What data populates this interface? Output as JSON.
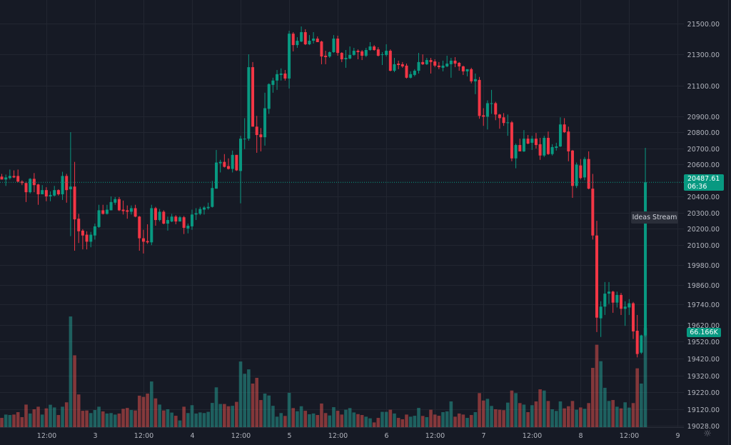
{
  "chart_data": {
    "type": "candlestick",
    "title": "",
    "scale": "log",
    "grid": true,
    "colors": {
      "up": "#089981",
      "down": "#f23645",
      "volume_up": "#26a69a",
      "volume_down": "#ef5350",
      "background": "#161a25",
      "grid": "#222631"
    },
    "y_ticks": [
      "21500.00",
      "21300.00",
      "21100.00",
      "20900.00",
      "20800.00",
      "20700.00",
      "20600.00",
      "20400.00",
      "20300.00",
      "20200.00",
      "20100.00",
      "19980.00",
      "19860.00",
      "19740.00",
      "19620.00",
      "19520.00",
      "19420.00",
      "19320.00",
      "19220.00",
      "19120.00",
      "19028.00"
    ],
    "ylim": [
      19028,
      21500
    ],
    "x_ticks": [
      {
        "label": "12:00",
        "bar": 11
      },
      {
        "label": "3",
        "bar": 23
      },
      {
        "label": "12:00",
        "bar": 35
      },
      {
        "label": "4",
        "bar": 47
      },
      {
        "label": "12:00",
        "bar": 59
      },
      {
        "label": "5",
        "bar": 71
      },
      {
        "label": "12:00",
        "bar": 83
      },
      {
        "label": "6",
        "bar": 95
      },
      {
        "label": "12:00",
        "bar": 107
      },
      {
        "label": "7",
        "bar": 119
      },
      {
        "label": "12:00",
        "bar": 131
      },
      {
        "label": "8",
        "bar": 143
      },
      {
        "label": "12:00",
        "bar": 155
      },
      {
        "label": "9",
        "bar": 167
      }
    ],
    "last_price": "20487.61",
    "countdown": "06:36",
    "last_volume": "66.166K",
    "candles_ohlc": [
      [
        20523,
        20540,
        20505,
        20505
      ],
      [
        20505,
        20536,
        20465,
        20518
      ],
      [
        20514,
        20567,
        20505,
        20527
      ],
      [
        20527,
        20562,
        20514,
        20518
      ],
      [
        20527,
        20567,
        20487,
        20492
      ],
      [
        20492,
        20500,
        20470,
        20483
      ],
      [
        20483,
        20492,
        20365,
        20426
      ],
      [
        20426,
        20514,
        20418,
        20509
      ],
      [
        20509,
        20545,
        20426,
        20470
      ],
      [
        20474,
        20478,
        20348,
        20413
      ],
      [
        20413,
        20470,
        20413,
        20439
      ],
      [
        20439,
        20457,
        20370,
        20400
      ],
      [
        20400,
        20431,
        20370,
        20409
      ],
      [
        20405,
        20465,
        20400,
        20439
      ],
      [
        20439,
        20444,
        20405,
        20413
      ],
      [
        20413,
        20553,
        20378,
        20527
      ],
      [
        20527,
        20540,
        20361,
        20439
      ],
      [
        20444,
        20802,
        20155,
        20461
      ],
      [
        20461,
        20615,
        20066,
        20258
      ],
      [
        20262,
        20292,
        20113,
        20185
      ],
      [
        20189,
        20198,
        20074,
        20159
      ],
      [
        20164,
        20185,
        20074,
        20121
      ],
      [
        20121,
        20181,
        20087,
        20164
      ],
      [
        20159,
        20232,
        20134,
        20215
      ],
      [
        20211,
        20348,
        20206,
        20314
      ],
      [
        20314,
        20348,
        20288,
        20292
      ],
      [
        20292,
        20348,
        20288,
        20318
      ],
      [
        20314,
        20400,
        20314,
        20365
      ],
      [
        20361,
        20396,
        20348,
        20383
      ],
      [
        20383,
        20396,
        20309,
        20314
      ],
      [
        20318,
        20374,
        20288,
        20309
      ],
      [
        20314,
        20344,
        20262,
        20305
      ],
      [
        20305,
        20344,
        20288,
        20327
      ],
      [
        20327,
        20348,
        20271,
        20275
      ],
      [
        20275,
        20279,
        20066,
        20142
      ],
      [
        20142,
        20194,
        20049,
        20121
      ],
      [
        20125,
        20228,
        20108,
        20117
      ],
      [
        20117,
        20348,
        20100,
        20327
      ],
      [
        20327,
        20335,
        20219,
        20254
      ],
      [
        20254,
        20322,
        20245,
        20305
      ],
      [
        20305,
        20314,
        20228,
        20232
      ],
      [
        20232,
        20275,
        20189,
        20254
      ],
      [
        20245,
        20292,
        20241,
        20275
      ],
      [
        20275,
        20284,
        20228,
        20245
      ],
      [
        20245,
        20279,
        20245,
        20271
      ],
      [
        20271,
        20279,
        20168,
        20206
      ],
      [
        20202,
        20232,
        20172,
        20219
      ],
      [
        20215,
        20318,
        20194,
        20288
      ],
      [
        20288,
        20327,
        20254,
        20296
      ],
      [
        20292,
        20335,
        20284,
        20322
      ],
      [
        20318,
        20340,
        20288,
        20331
      ],
      [
        20327,
        20361,
        20318,
        20335
      ],
      [
        20335,
        20496,
        20331,
        20452
      ],
      [
        20448,
        20690,
        20448,
        20611
      ],
      [
        20606,
        20628,
        20549,
        20615
      ],
      [
        20615,
        20664,
        20580,
        20584
      ],
      [
        20589,
        20637,
        20567,
        20571
      ],
      [
        20571,
        20686,
        20549,
        20659
      ],
      [
        20659,
        20659,
        20558,
        20562
      ],
      [
        20558,
        20779,
        20357,
        20761
      ],
      [
        20757,
        20891,
        20695,
        20761
      ],
      [
        20761,
        21300,
        20748,
        21217
      ],
      [
        21217,
        21250,
        20837,
        20837
      ],
      [
        20837,
        20905,
        20672,
        20784
      ],
      [
        20788,
        20828,
        20681,
        20770
      ],
      [
        20770,
        21053,
        20717,
        20954
      ],
      [
        20950,
        21113,
        20918,
        21108
      ],
      [
        21103,
        21149,
        21053,
        21131
      ],
      [
        21131,
        21199,
        21071,
        21172
      ],
      [
        21167,
        21209,
        21131,
        21176
      ],
      [
        21176,
        21199,
        21131,
        21144
      ],
      [
        21144,
        21453,
        21080,
        21434
      ],
      [
        21434,
        21444,
        21319,
        21360
      ],
      [
        21360,
        21411,
        21342,
        21388
      ],
      [
        21383,
        21481,
        21379,
        21444
      ],
      [
        21444,
        21463,
        21360,
        21365
      ],
      [
        21365,
        21425,
        21360,
        21388
      ],
      [
        21388,
        21444,
        21370,
        21402
      ],
      [
        21402,
        21416,
        21379,
        21379
      ],
      [
        21383,
        21388,
        21236,
        21286
      ],
      [
        21291,
        21323,
        21236,
        21282
      ],
      [
        21286,
        21319,
        21277,
        21314
      ],
      [
        21314,
        21425,
        21309,
        21402
      ],
      [
        21402,
        21421,
        21291,
        21309
      ],
      [
        21309,
        21314,
        21250,
        21268
      ],
      [
        21268,
        21328,
        21213,
        21277
      ],
      [
        21273,
        21351,
        21268,
        21296
      ],
      [
        21296,
        21342,
        21291,
        21323
      ],
      [
        21323,
        21332,
        21268,
        21314
      ],
      [
        21319,
        21328,
        21263,
        21291
      ],
      [
        21291,
        21342,
        21282,
        21328
      ],
      [
        21328,
        21379,
        21323,
        21351
      ],
      [
        21351,
        21360,
        21323,
        21328
      ],
      [
        21332,
        21346,
        21286,
        21291
      ],
      [
        21296,
        21314,
        21231,
        21300
      ],
      [
        21296,
        21365,
        21286,
        21323
      ],
      [
        21323,
        21332,
        21190,
        21194
      ],
      [
        21194,
        21277,
        21185,
        21236
      ],
      [
        21240,
        21259,
        21204,
        21231
      ],
      [
        21236,
        21250,
        21213,
        21222
      ],
      [
        21227,
        21240,
        21144,
        21149
      ],
      [
        21149,
        21190,
        21144,
        21172
      ],
      [
        21167,
        21204,
        21158,
        21194
      ],
      [
        21194,
        21309,
        21176,
        21250
      ],
      [
        21250,
        21300,
        21231,
        21236
      ],
      [
        21236,
        21277,
        21231,
        21263
      ],
      [
        21263,
        21277,
        21176,
        21250
      ],
      [
        21254,
        21268,
        21217,
        21227
      ],
      [
        21227,
        21250,
        21204,
        21217
      ],
      [
        21213,
        21259,
        21190,
        21227
      ],
      [
        21222,
        21291,
        21217,
        21240
      ],
      [
        21236,
        21277,
        21149,
        21259
      ],
      [
        21259,
        21282,
        21217,
        21240
      ],
      [
        21245,
        21250,
        21194,
        21222
      ],
      [
        21222,
        21227,
        21167,
        21190
      ],
      [
        21190,
        21204,
        21158,
        21204
      ],
      [
        21204,
        21213,
        21113,
        21126
      ],
      [
        21126,
        21176,
        21044,
        21140
      ],
      [
        21135,
        21154,
        20887,
        20905
      ],
      [
        20909,
        20954,
        20842,
        20900
      ],
      [
        20900,
        21004,
        20819,
        20986
      ],
      [
        20981,
        21071,
        20918,
        20986
      ],
      [
        20986,
        20995,
        20878,
        20914
      ],
      [
        20914,
        20918,
        20824,
        20891
      ],
      [
        20896,
        20923,
        20842,
        20860
      ],
      [
        20860,
        20914,
        20779,
        20864
      ],
      [
        20864,
        20873,
        20619,
        20637
      ],
      [
        20637,
        20730,
        20575,
        20721
      ],
      [
        20721,
        20761,
        20681,
        20681
      ],
      [
        20681,
        20815,
        20677,
        20761
      ],
      [
        20761,
        20784,
        20726,
        20730
      ],
      [
        20735,
        20779,
        20690,
        20761
      ],
      [
        20761,
        20797,
        20699,
        20721
      ],
      [
        20726,
        20766,
        20628,
        20655
      ],
      [
        20655,
        20779,
        20646,
        20766
      ],
      [
        20766,
        20806,
        20659,
        20664
      ],
      [
        20664,
        20726,
        20655,
        20708
      ],
      [
        20703,
        20735,
        20686,
        20712
      ],
      [
        20712,
        20896,
        20708,
        20851
      ],
      [
        20851,
        20891,
        20797,
        20802
      ],
      [
        20806,
        20837,
        20619,
        20681
      ],
      [
        20686,
        20690,
        20391,
        20465
      ],
      [
        20465,
        20611,
        20452,
        20598
      ],
      [
        20593,
        20633,
        20505,
        20514
      ],
      [
        20518,
        20646,
        20500,
        20633
      ],
      [
        20633,
        20681,
        20444,
        20448
      ],
      [
        20448,
        20540,
        20134,
        20159
      ],
      [
        20159,
        20249,
        19576,
        19662
      ],
      [
        19658,
        19760,
        19547,
        19728
      ],
      [
        19728,
        19876,
        19678,
        19806
      ],
      [
        19806,
        19876,
        19744,
        19818
      ],
      [
        19818,
        19823,
        19691,
        19752
      ],
      [
        19752,
        19818,
        19723,
        19798
      ],
      [
        19798,
        19810,
        19678,
        19715
      ],
      [
        19715,
        19760,
        19613,
        19728
      ],
      [
        19723,
        19773,
        19678,
        19748
      ],
      [
        19748,
        19756,
        19535,
        19580
      ],
      [
        19584,
        19678,
        19426,
        19446
      ],
      [
        19454,
        19560,
        19446,
        19556
      ],
      [
        19556,
        20703,
        19547,
        20487.61
      ]
    ],
    "volume_k": [
      6.6,
      8.8,
      8.5,
      8.8,
      10.4,
      7.1,
      15.4,
      9.5,
      12.3,
      14.0,
      8.8,
      12.9,
      15.3,
      13.5,
      8.5,
      14.0,
      16.9,
      73.7,
      48.0,
      22.1,
      11.3,
      11.5,
      9.8,
      11.8,
      14.0,
      10.9,
      9.5,
      9.8,
      8.8,
      9.5,
      12.6,
      13.2,
      11.8,
      11.5,
      21.3,
      20.5,
      22.7,
      30.7,
      19.5,
      15.4,
      11.5,
      12.3,
      10.1,
      8.0,
      4.9,
      14.0,
      9.8,
      15.0,
      9.5,
      10.2,
      9.8,
      10.6,
      16.5,
      26.8,
      15.8,
      15.8,
      14.3,
      14.6,
      17.2,
      43.9,
      35.8,
      38.7,
      29.3,
      33.1,
      18.4,
      22.7,
      21.4,
      14.6,
      7.4,
      9.8,
      7.9,
      23.2,
      13.1,
      11.0,
      14.3,
      11.3,
      9.0,
      9.5,
      8.5,
      16.1,
      9.8,
      8.2,
      13.7,
      11.3,
      8.8,
      12.0,
      13.1,
      10.2,
      9.1,
      8.5,
      7.4,
      6.3,
      3.6,
      6.6,
      10.6,
      10.6,
      12.0,
      9.5,
      6.6,
      5.7,
      8.8,
      7.4,
      8.0,
      13.2,
      7.9,
      7.1,
      12.0,
      8.8,
      8.0,
      10.4,
      10.9,
      17.5,
      7.4,
      9.5,
      8.8,
      6.6,
      8.5,
      10.4,
      23.0,
      18.1,
      19.2,
      14.5,
      12.3,
      12.0,
      11.7,
      16.7,
      24.7,
      23.0,
      16.4,
      15.4,
      10.4,
      15.0,
      17.5,
      25.5,
      24.7,
      17.8,
      12.3,
      11.2,
      17.5,
      12.9,
      14.3,
      17.8,
      12.0,
      13.5,
      12.6,
      16.4,
      39.7,
      55.0,
      44.1,
      26.5,
      17.8,
      18.4,
      14.0,
      12.9,
      16.9,
      13.4,
      16.4,
      39.4,
      29.3,
      66.166
    ]
  },
  "overlay": {
    "ideas_stream": "Ideas Stream",
    "settings_icon": "gear-icon"
  }
}
